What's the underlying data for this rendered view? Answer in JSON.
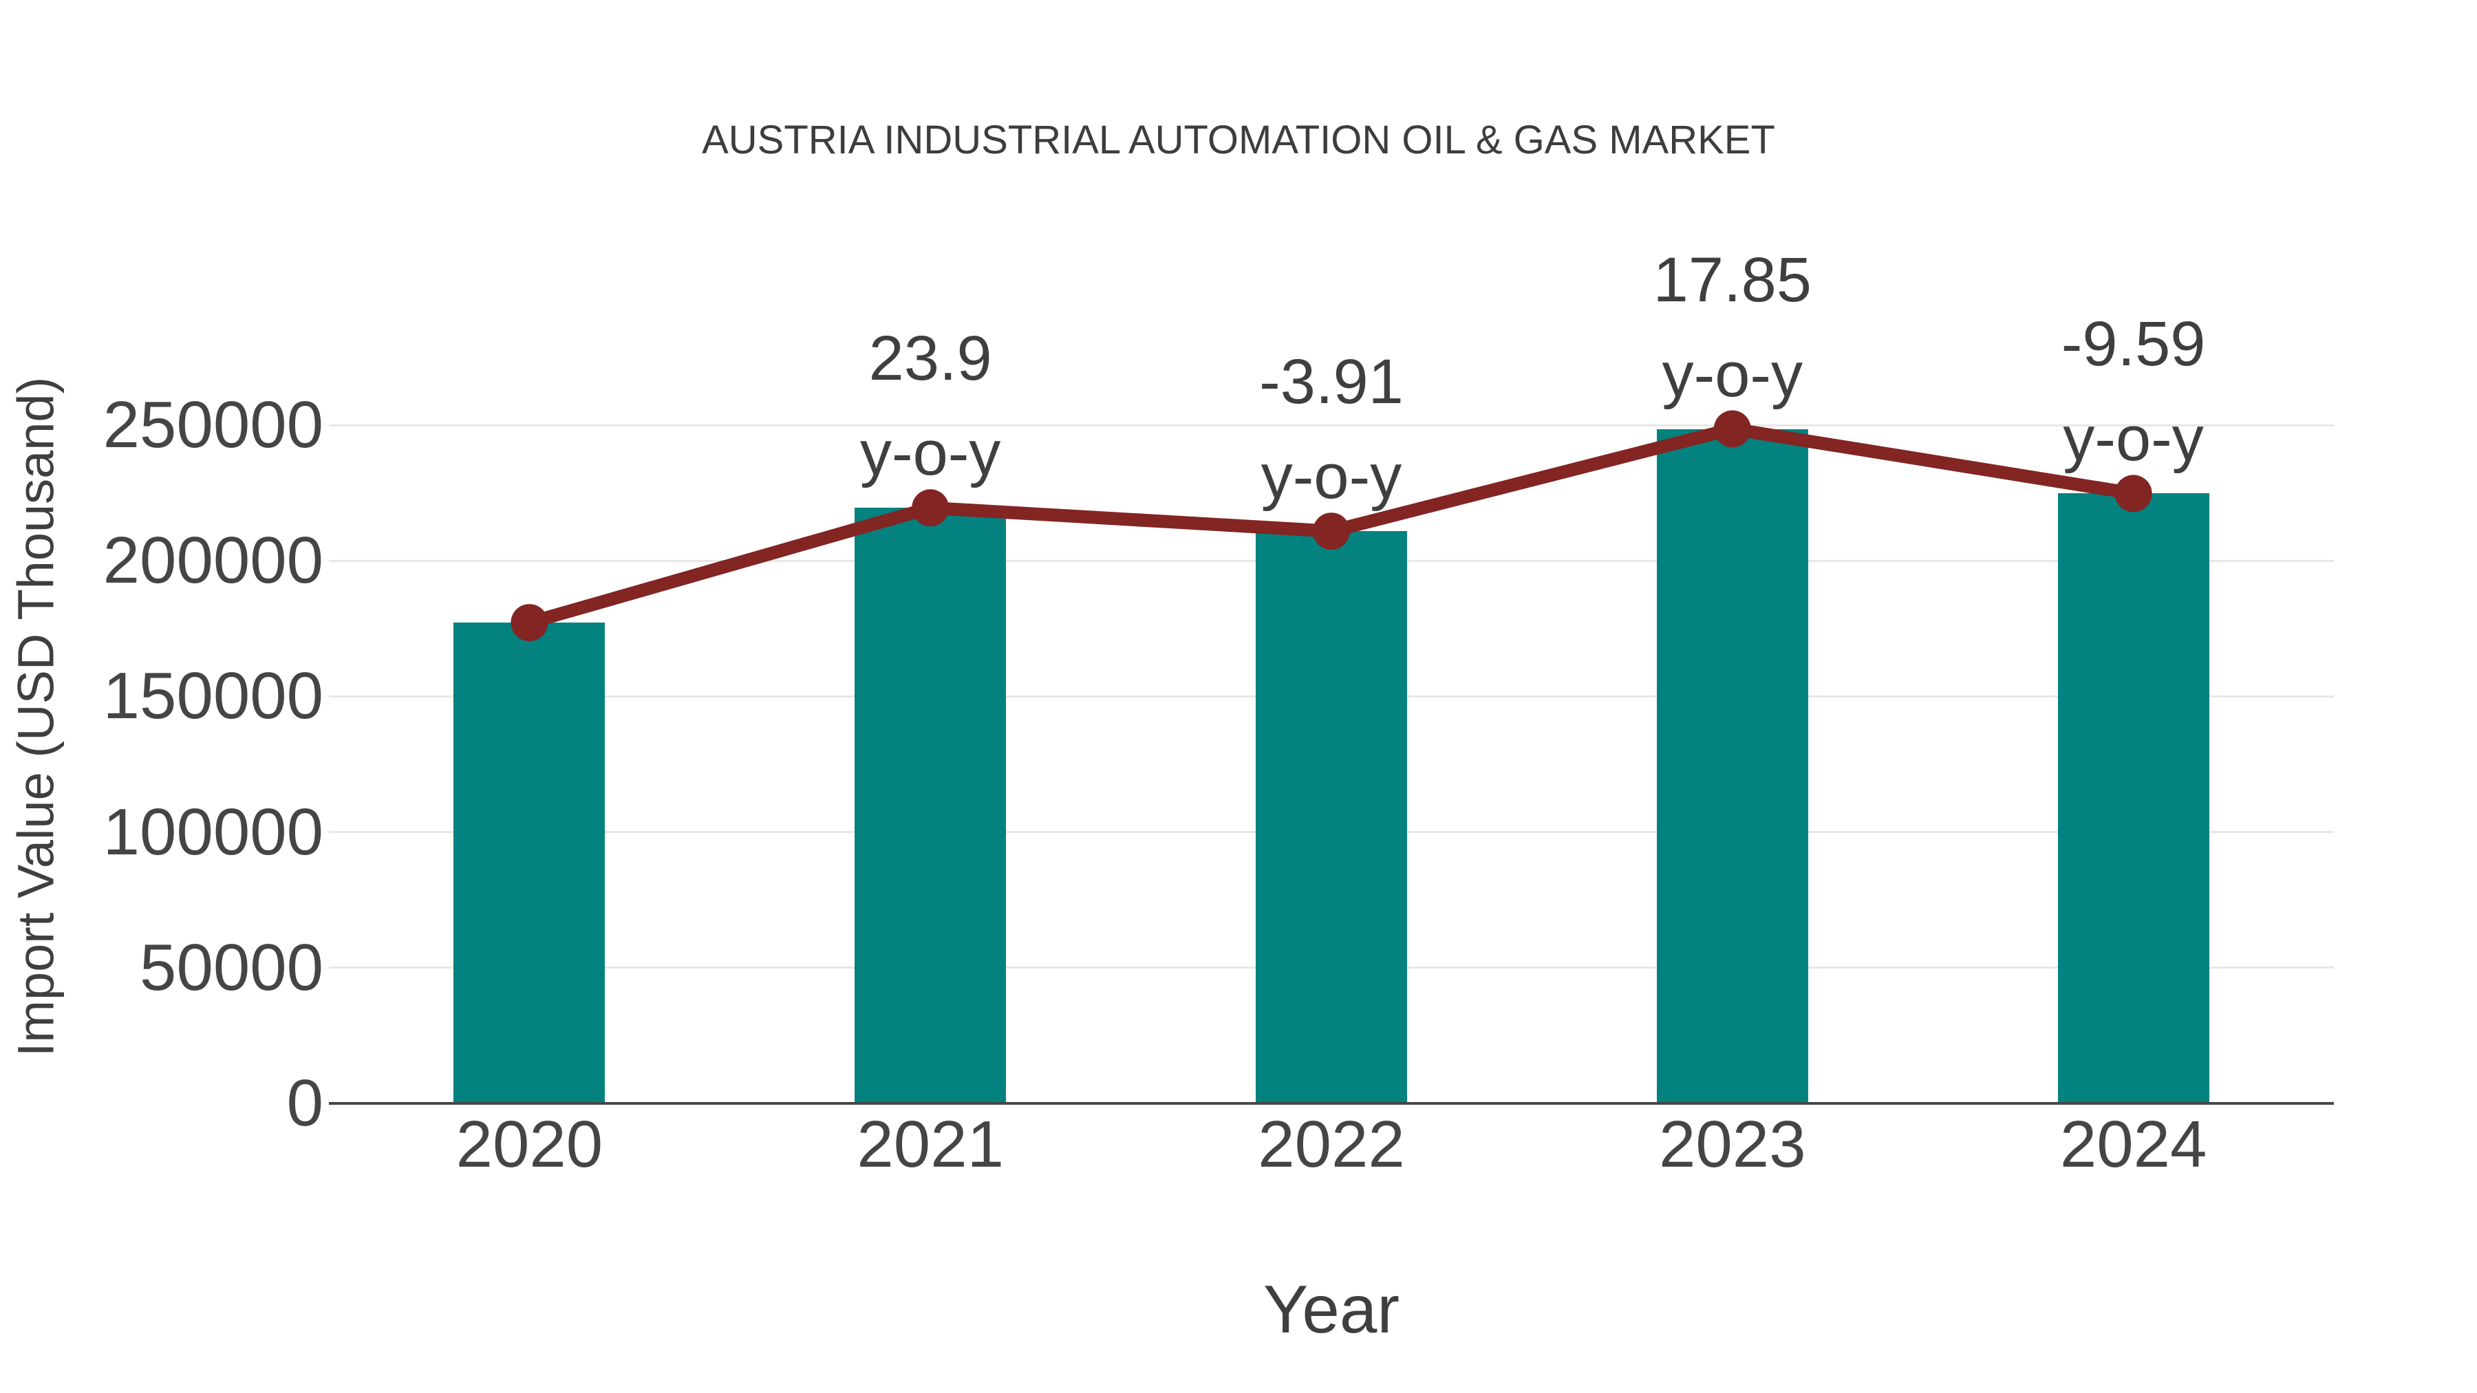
{
  "chart_data": {
    "type": "bar",
    "title": "AUSTRIA INDUSTRIAL AUTOMATION OIL & GAS MARKET",
    "xlabel": "Year",
    "ylabel": "Import Value (USD Thousand)",
    "categories": [
      "2020",
      "2021",
      "2022",
      "2023",
      "2024"
    ],
    "series": [
      {
        "name": "import-value-bars",
        "type": "bar",
        "color": "#038280",
        "values": [
          177200,
          219500,
          210900,
          248600,
          224800
        ]
      },
      {
        "name": "import-value-trend-line",
        "type": "line",
        "color": "#822523",
        "values": [
          177200,
          219500,
          210900,
          248600,
          224800
        ]
      }
    ],
    "annotations": [
      {
        "category": "2021",
        "value_label": "23.9",
        "suffix": "y-o-y"
      },
      {
        "category": "2022",
        "value_label": "-3.91",
        "suffix": "y-o-y"
      },
      {
        "category": "2023",
        "value_label": "17.85",
        "suffix": "y-o-y"
      },
      {
        "category": "2024",
        "value_label": "-9.59",
        "suffix": "y-o-y"
      }
    ],
    "yticks": [
      0,
      50000,
      100000,
      150000,
      200000,
      250000
    ],
    "ylim": [
      0,
      250000
    ],
    "grid": "horizontal",
    "legend": "none",
    "colors": {
      "bar": "#038280",
      "line": "#822523",
      "text": "#3f3f3f",
      "gridline": "#e7e7e7",
      "axis": "#474747",
      "background": "#ffffff"
    }
  }
}
